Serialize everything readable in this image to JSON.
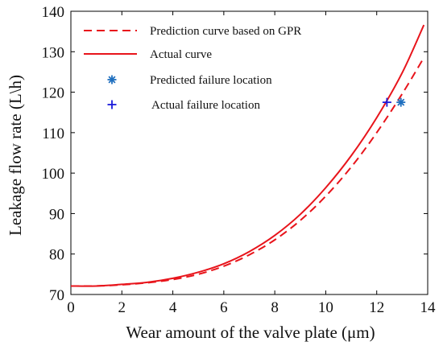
{
  "chart_data": {
    "type": "line",
    "title": "",
    "xlabel": "Wear amount of the valve plate (μm)",
    "ylabel": "Leakage flow rate (L\\h)",
    "xlim": [
      0,
      14
    ],
    "ylim": [
      70,
      140
    ],
    "x_ticks": [
      0,
      2,
      4,
      6,
      8,
      10,
      12,
      14
    ],
    "y_ticks": [
      70,
      80,
      90,
      100,
      110,
      120,
      130,
      140
    ],
    "grid": false,
    "legend_position": "top-left",
    "series": [
      {
        "name": "Prediction curve based on GPR",
        "style": "dashed",
        "color": "#e8141b",
        "x": [
          0,
          1,
          2,
          3,
          4,
          5,
          6,
          7,
          8,
          9,
          10,
          11,
          12,
          13,
          13.8
        ],
        "y": [
          72.1,
          72.1,
          72.4,
          72.9,
          73.7,
          75.0,
          77.0,
          79.8,
          83.5,
          88.3,
          94.3,
          101.5,
          110.0,
          119.6,
          128.0
        ]
      },
      {
        "name": "Actual curve",
        "style": "solid",
        "color": "#e8141b",
        "x": [
          0,
          1,
          2,
          3,
          4,
          5,
          6,
          7,
          8,
          9,
          10,
          11,
          12,
          13,
          13.85
        ],
        "y": [
          72.1,
          72.1,
          72.5,
          73.0,
          74.0,
          75.5,
          77.6,
          80.6,
          84.6,
          89.8,
          96.4,
          104.3,
          113.7,
          124.8,
          136.6
        ]
      },
      {
        "name": "Predicted failure location",
        "style": "marker",
        "marker": "asterisk",
        "color": "#1f6fbf",
        "x": [
          12.95
        ],
        "y": [
          117.5
        ]
      },
      {
        "name": "Actual failure location",
        "style": "marker",
        "marker": "plus",
        "color": "#1a1adb",
        "x": [
          12.4
        ],
        "y": [
          117.5
        ]
      }
    ]
  }
}
